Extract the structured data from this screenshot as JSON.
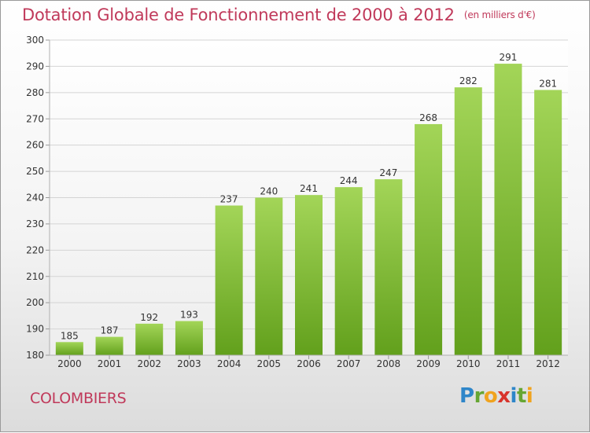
{
  "title": "Dotation Globale de Fonctionnement de 2000 à 2012",
  "subtitle": "(en milliers d'€)",
  "location": "COLOMBIERS",
  "brand": "Proxiti",
  "colors": {
    "title": "#c0395a",
    "bar_light": "#a3d558",
    "bar_dark": "#62a01c",
    "grid": "#d4d4d4"
  },
  "chart_data": {
    "type": "bar",
    "categories": [
      "2000",
      "2001",
      "2002",
      "2003",
      "2004",
      "2005",
      "2006",
      "2007",
      "2008",
      "2009",
      "2010",
      "2011",
      "2012"
    ],
    "values": [
      185,
      187,
      192,
      193,
      237,
      240,
      241,
      244,
      247,
      268,
      282,
      291,
      281
    ],
    "ylim": [
      180,
      300
    ],
    "yticks": [
      180,
      190,
      200,
      210,
      220,
      230,
      240,
      250,
      260,
      270,
      280,
      290,
      300
    ],
    "grid": true,
    "xlabel": "",
    "ylabel": ""
  }
}
